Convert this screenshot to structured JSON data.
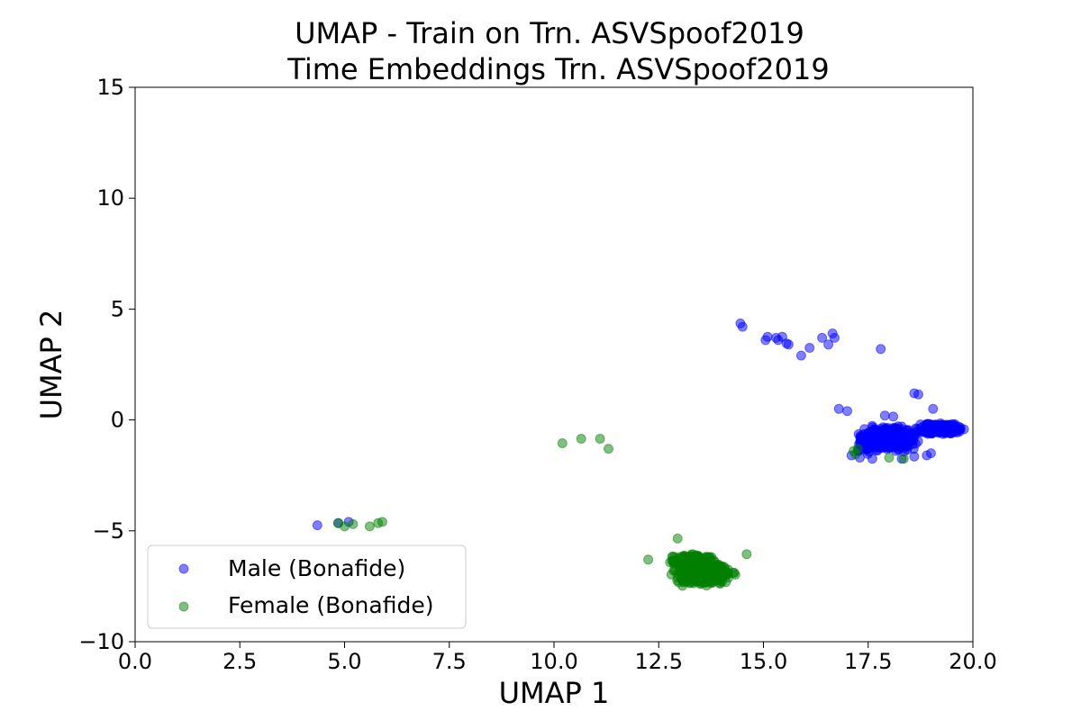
{
  "chart_data": {
    "type": "scatter",
    "title": [
      "UMAP - Train on Trn. ASVSpoof2019",
      "Time Embeddings Trn. ASVSpoof2019"
    ],
    "xlabel": "UMAP 1",
    "ylabel": "UMAP 2",
    "xlim": [
      0,
      20
    ],
    "ylim": [
      -10,
      15
    ],
    "xticks": [
      0.0,
      2.5,
      5.0,
      7.5,
      10.0,
      12.5,
      15.0,
      17.5,
      20.0
    ],
    "xtick_labels": [
      "0.0",
      "2.5",
      "5.0",
      "7.5",
      "10.0",
      "12.5",
      "15.0",
      "17.5",
      "20.0"
    ],
    "yticks": [
      -10,
      -5,
      0,
      5,
      10,
      15
    ],
    "ytick_labels": [
      "−10",
      "−5",
      "0",
      "5",
      "10",
      "15"
    ],
    "grid": false,
    "legend_position": "lower-left",
    "series": [
      {
        "name": "Male (Bonafide)",
        "color": "#0000ff",
        "alpha": 0.5,
        "points": [
          [
            4.35,
            -4.75
          ],
          [
            4.85,
            -4.65
          ],
          [
            5.1,
            -4.6
          ],
          [
            14.45,
            4.35
          ],
          [
            14.5,
            4.2
          ],
          [
            15.05,
            3.6
          ],
          [
            15.1,
            3.75
          ],
          [
            15.3,
            3.7
          ],
          [
            15.35,
            3.6
          ],
          [
            15.45,
            3.75
          ],
          [
            15.55,
            3.45
          ],
          [
            15.6,
            3.4
          ],
          [
            15.9,
            2.9
          ],
          [
            16.1,
            3.25
          ],
          [
            16.4,
            3.7
          ],
          [
            16.55,
            3.4
          ],
          [
            16.65,
            3.9
          ],
          [
            16.7,
            3.7
          ],
          [
            17.8,
            3.2
          ],
          [
            18.6,
            1.2
          ],
          [
            18.7,
            1.15
          ],
          [
            16.8,
            0.5
          ],
          [
            17.0,
            0.4
          ],
          [
            19.05,
            0.5
          ],
          [
            17.1,
            -1.6
          ],
          [
            17.3,
            -1.7
          ],
          [
            17.6,
            -1.75
          ],
          [
            18.3,
            -1.75
          ],
          [
            18.6,
            -1.65
          ],
          [
            18.9,
            -1.6
          ],
          [
            17.9,
            0.2
          ],
          [
            18.1,
            0.15
          ],
          [
            19.0,
            -1.5
          ]
        ],
        "clusters": [
          {
            "center": [
              18.0,
              -0.85
            ],
            "spread": [
              0.55,
              0.45
            ],
            "count": 450
          },
          {
            "center": [
              19.2,
              -0.4
            ],
            "spread": [
              0.45,
              0.25
            ],
            "count": 220
          },
          {
            "center": [
              17.4,
              -1.0
            ],
            "spread": [
              0.15,
              0.4
            ],
            "count": 60
          }
        ]
      },
      {
        "name": "Female (Bonafide)",
        "color": "#008000",
        "alpha": 0.5,
        "points": [
          [
            4.85,
            -4.65
          ],
          [
            5.0,
            -4.8
          ],
          [
            5.2,
            -4.7
          ],
          [
            5.6,
            -4.8
          ],
          [
            5.8,
            -4.65
          ],
          [
            5.9,
            -4.6
          ],
          [
            10.2,
            -1.05
          ],
          [
            10.65,
            -0.85
          ],
          [
            11.1,
            -0.85
          ],
          [
            11.3,
            -1.3
          ],
          [
            12.25,
            -6.3
          ],
          [
            12.95,
            -5.35
          ],
          [
            14.6,
            -6.05
          ],
          [
            17.15,
            -1.4
          ],
          [
            17.2,
            -1.55
          ],
          [
            17.25,
            -1.3
          ],
          [
            18.0,
            -1.7
          ],
          [
            18.35,
            -1.75
          ]
        ],
        "clusters": [
          {
            "center": [
              13.55,
              -6.9
            ],
            "spread": [
              0.55,
              0.45
            ],
            "count": 650
          },
          {
            "center": [
              13.3,
              -6.3
            ],
            "spread": [
              0.45,
              0.2
            ],
            "count": 180
          }
        ]
      }
    ]
  }
}
